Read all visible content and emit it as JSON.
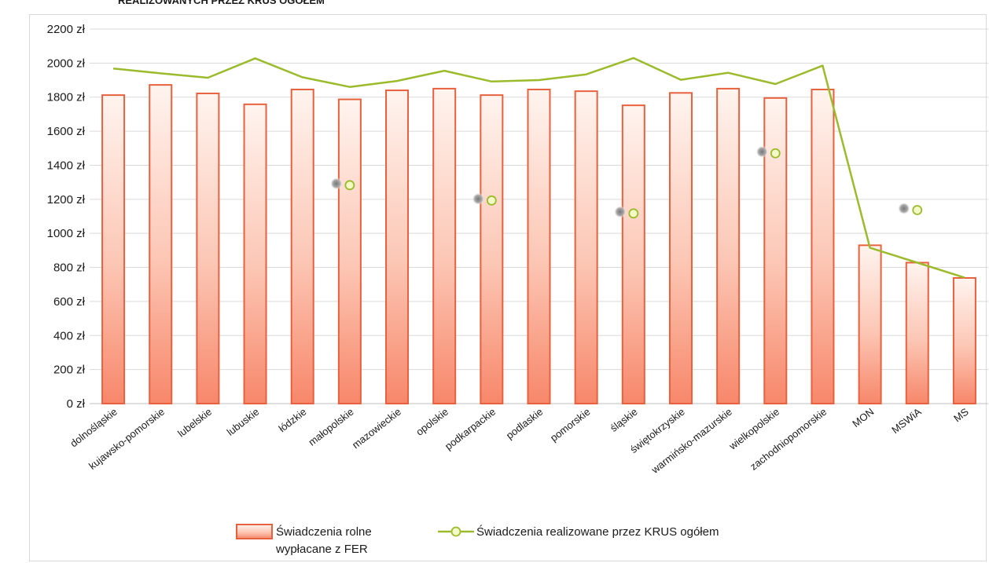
{
  "chart_data": {
    "type": "bar",
    "title": "REALIZOWANYCH PRZEZ KRUS OGÓŁEM",
    "xlabel": "",
    "ylabel": "",
    "ylim": [
      0,
      2200
    ],
    "y_ticks": [
      0,
      200,
      400,
      600,
      800,
      1000,
      1200,
      1400,
      1600,
      1800,
      2000,
      2200
    ],
    "y_tick_labels": [
      "0 zł",
      "200 zł",
      "400 zł",
      "600 zł",
      "800 zł",
      "1000 zł",
      "1200 zł",
      "1400 zł",
      "1600 zł",
      "1800 zł",
      "2000 zł",
      "2200 zł"
    ],
    "grid": true,
    "legend_position": "bottom",
    "categories": [
      "dolnośląskie",
      "kujawsko-pomorskie",
      "lubelskie",
      "lubuskie",
      "łódzkie",
      "małopolskie",
      "mazowieckie",
      "opolskie",
      "podkarpackie",
      "podlaskie",
      "pomorskie",
      "śląskie",
      "świętokrzyskie",
      "warmińsko-mazurskie",
      "wielkopolskie",
      "zachodniopomorskie",
      "MON",
      "MSWiA",
      "MS"
    ],
    "series": [
      {
        "name": "Świadczenia rolne wypłacane z FER",
        "legend_lines": [
          "Świadczenia rolne",
          "wypłacane z FER"
        ],
        "type": "bar",
        "color": "#e8613f",
        "values": [
          1812,
          1872,
          1822,
          1758,
          1845,
          1787,
          1840,
          1850,
          1812,
          1845,
          1835,
          1752,
          1825,
          1850,
          1795,
          1845,
          930,
          828,
          738
        ]
      },
      {
        "name": "Świadczenia realizowane przez KRUS ogółem",
        "type": "line",
        "color": "#9bbb2c",
        "values": [
          1968,
          1940,
          1914,
          2028,
          1917,
          1860,
          1895,
          1955,
          1892,
          1900,
          1934,
          2030,
          1902,
          1943,
          1877,
          1985,
          915,
          828,
          740
        ]
      }
    ],
    "markers": [
      {
        "category": "małopolskie",
        "value": 1283
      },
      {
        "category": "podkarpackie",
        "value": 1193
      },
      {
        "category": "śląskie",
        "value": 1117
      },
      {
        "category": "wielkopolskie",
        "value": 1470
      },
      {
        "category": "MSWiA",
        "value": 1137
      }
    ]
  }
}
